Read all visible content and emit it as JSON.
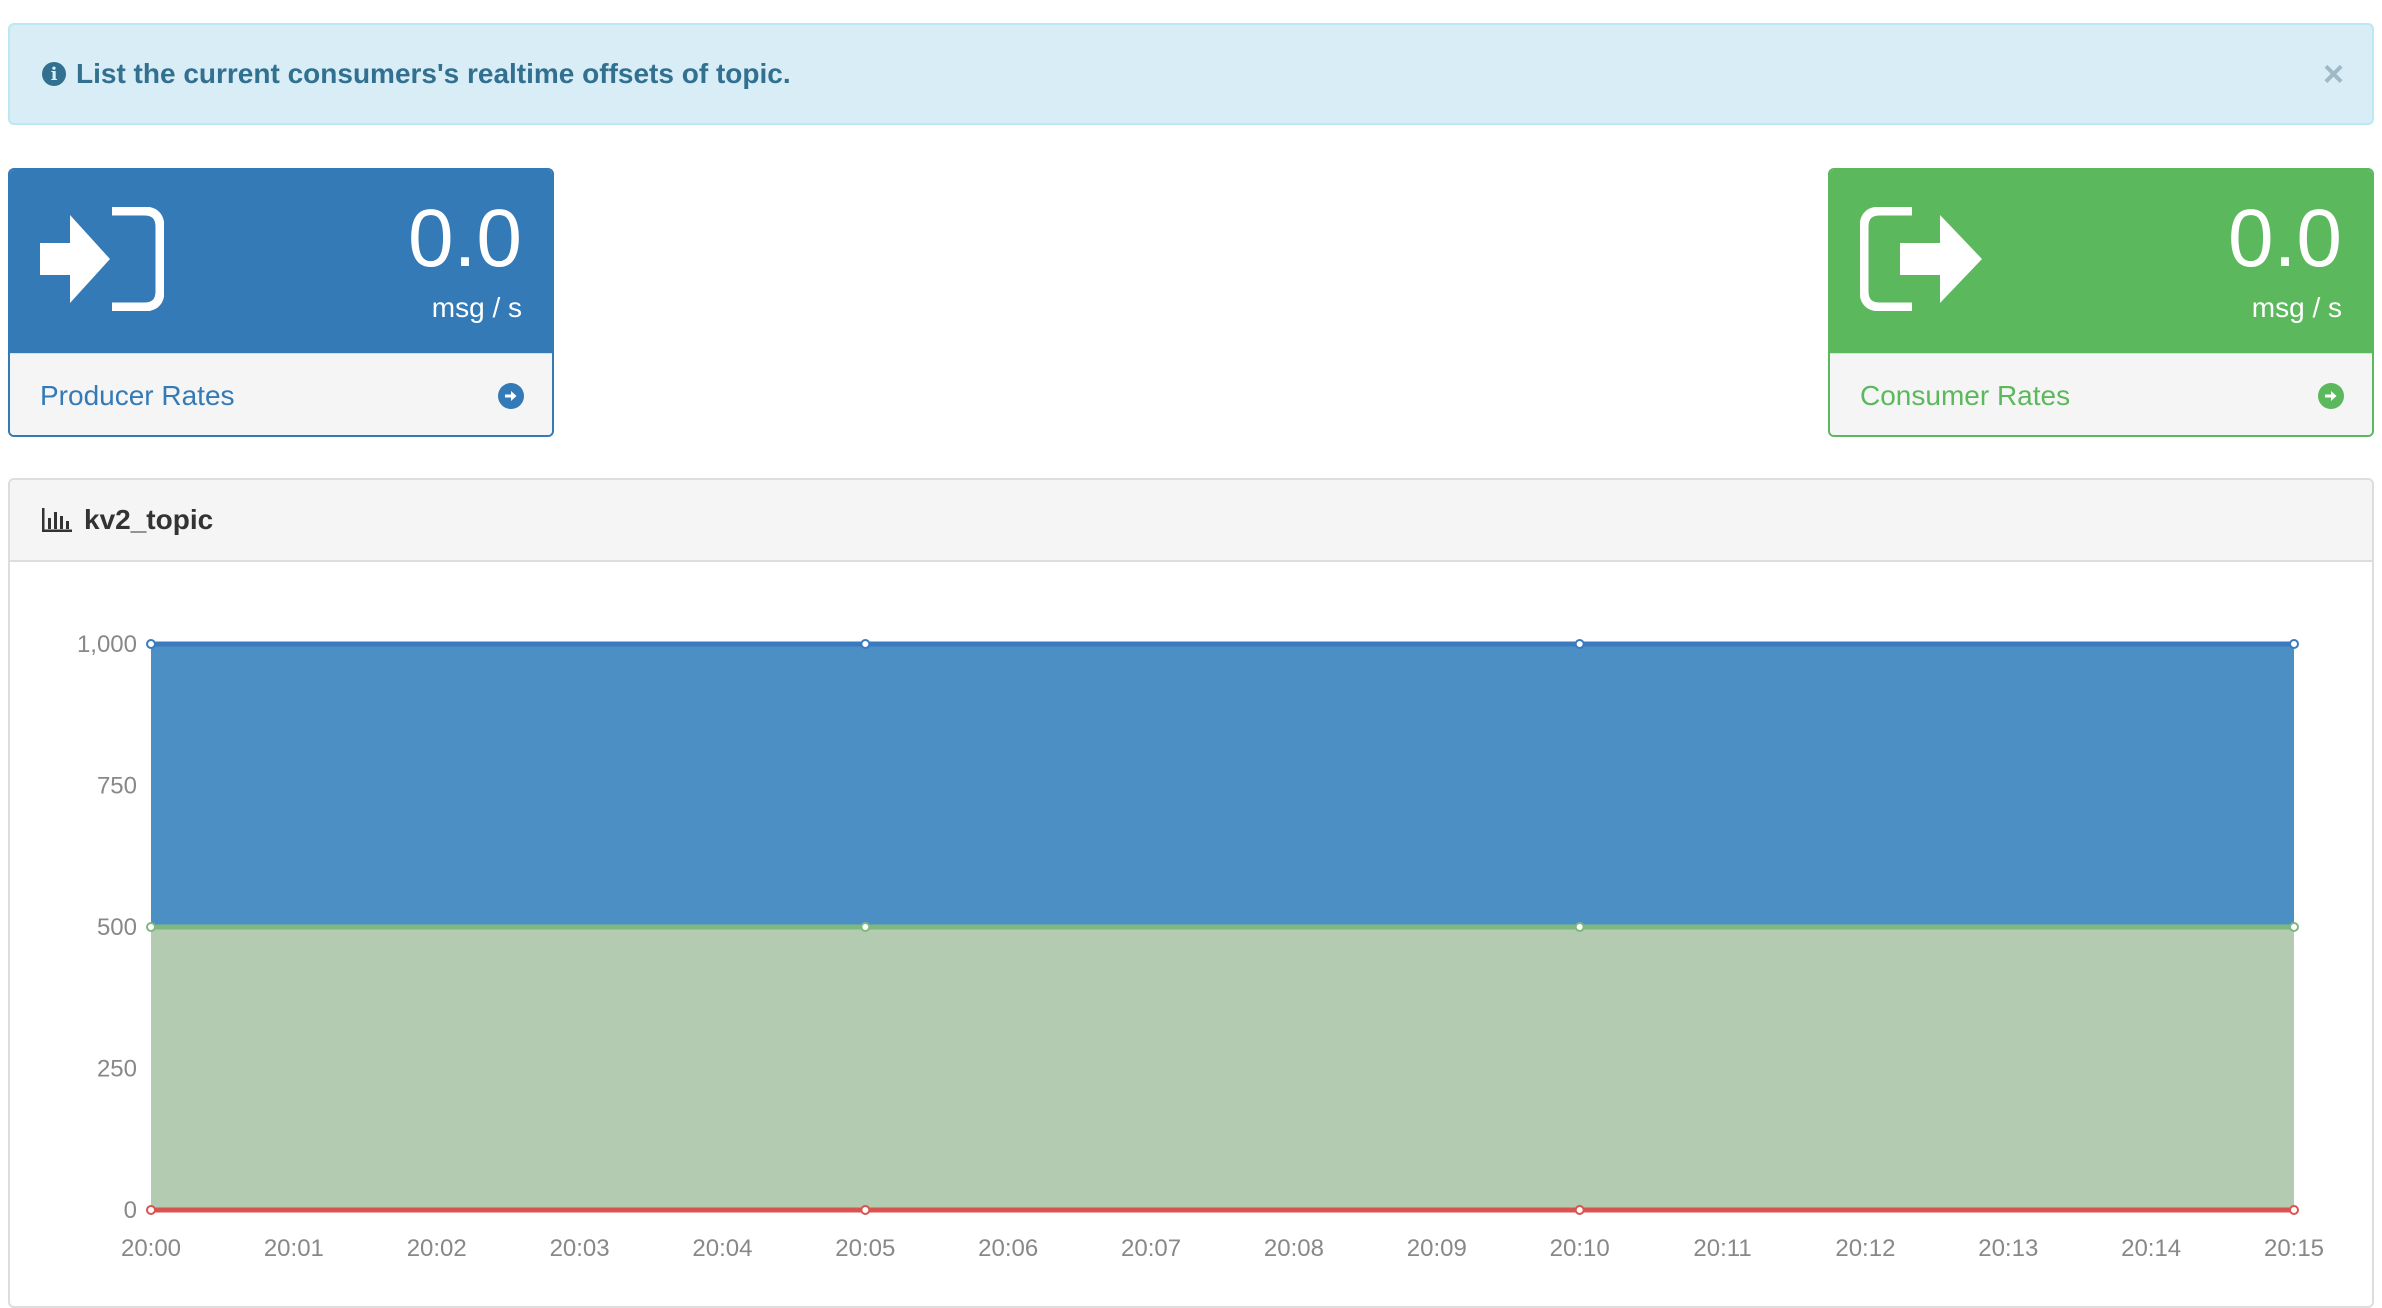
{
  "alert": {
    "message": "List the current consumers's realtime offsets of topic.",
    "close_label": "×"
  },
  "producer": {
    "value": "0.0",
    "unit": "msg / s",
    "label": "Producer Rates",
    "color": "#337ab7",
    "icon": "sign-in-icon"
  },
  "consumer": {
    "value": "0.0",
    "unit": "msg / s",
    "label": "Consumer Rates",
    "color": "#5cb85c",
    "icon": "sign-out-icon"
  },
  "chart_panel": {
    "title": "kv2_topic",
    "icon": "bar-chart-icon"
  },
  "chart_data": {
    "type": "area",
    "x": [
      "20:00",
      "20:05",
      "20:10",
      "20:15"
    ],
    "x_ticks": [
      "20:00",
      "20:01",
      "20:02",
      "20:03",
      "20:04",
      "20:05",
      "20:06",
      "20:07",
      "20:08",
      "20:09",
      "20:10",
      "20:11",
      "20:12",
      "20:13",
      "20:14",
      "20:15"
    ],
    "y_ticks": [
      "0",
      "250",
      "500",
      "750",
      "1,000"
    ],
    "ylim": [
      0,
      1000
    ],
    "stacked": true,
    "series": [
      {
        "values": [
          0,
          0,
          0,
          0
        ],
        "color": "#d9534f",
        "fill": "#d9534f"
      },
      {
        "values": [
          500,
          500,
          500,
          500
        ],
        "color": "#7eb87e",
        "fill": "#b2cbb1"
      },
      {
        "values": [
          500,
          500,
          500,
          500
        ],
        "color": "#3a7bbf",
        "fill": "#4b8fc4"
      }
    ],
    "grid": false
  }
}
